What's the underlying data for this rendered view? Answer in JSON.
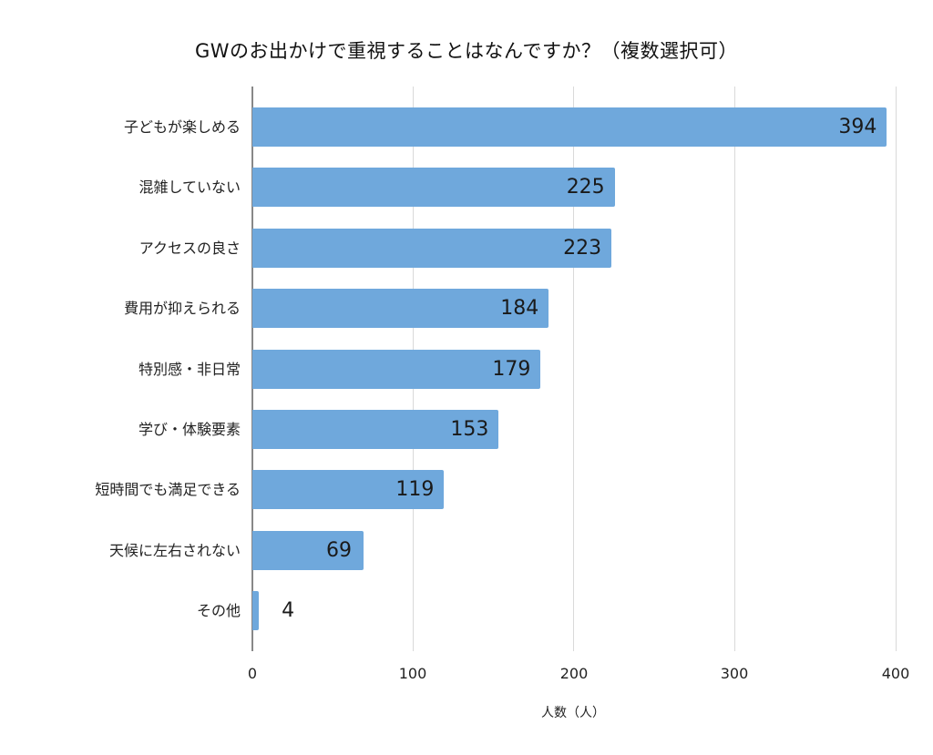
{
  "chart_data": {
    "type": "bar",
    "orientation": "horizontal",
    "title": "GWのお出かけで重視することはなんですか？（複数選択可）",
    "xlabel": "人数（人）",
    "ylabel": "",
    "xlim": [
      0,
      400
    ],
    "xticks": [
      "0",
      "100",
      "200",
      "300",
      "400"
    ],
    "grid": true,
    "legend": null,
    "categories": [
      "子どもが楽しめる",
      "混雑していない",
      "アクセスの良さ",
      "費用が抑えられる",
      "特別感・非日常",
      "学び・体験要素",
      "短時間でも満足できる",
      "天候に左右されない",
      "その他"
    ],
    "values": [
      394,
      225,
      223,
      184,
      179,
      153,
      119,
      69,
      4
    ],
    "labels": [
      "394",
      "225",
      "223",
      "184",
      "179",
      "153",
      "119",
      "69",
      "4"
    ],
    "colors": {
      "bar": "#6fa8dc",
      "grid": "#d9d9d9",
      "axis": "#888888"
    }
  }
}
